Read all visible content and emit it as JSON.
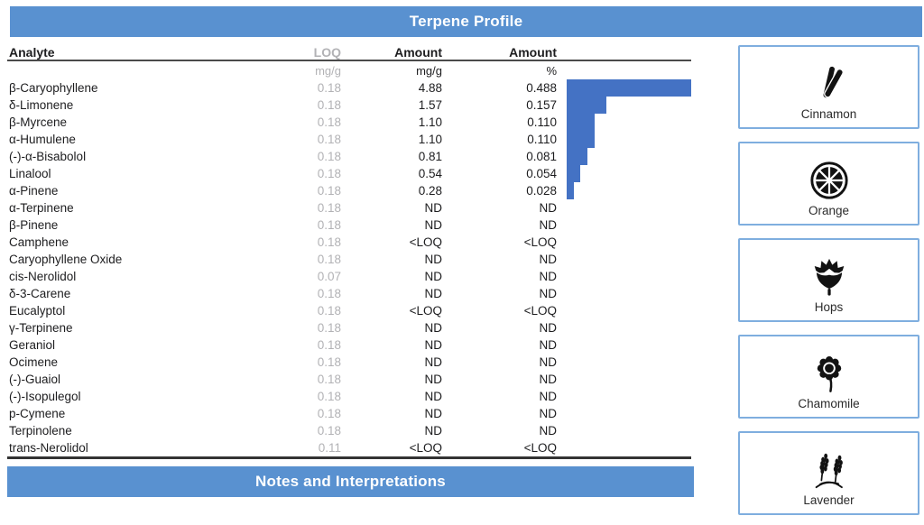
{
  "title_bar": {
    "label": "Terpene Profile"
  },
  "notes_bar": {
    "label": "Notes and Interpretations"
  },
  "colors": {
    "section_header_blue": "#5991D0",
    "bar_blue": "#4472C4",
    "loq_gray": "#B2B2B5",
    "card_border_blue": "#7FAEDF",
    "rule_dark": "#4A4A4A",
    "text": "#1D1D1F"
  },
  "table": {
    "columns": [
      {
        "label": "Analyte",
        "unit": ""
      },
      {
        "label": "LOQ",
        "unit": "mg/g"
      },
      {
        "label": "Amount",
        "unit": "mg/g"
      },
      {
        "label": "Amount",
        "unit": "%"
      }
    ],
    "rows": [
      {
        "analyte": "β-Caryophyllene",
        "loq": "0.18",
        "amount": "4.88",
        "pct": "0.488",
        "bar": 4.88
      },
      {
        "analyte": "δ-Limonene",
        "loq": "0.18",
        "amount": "1.57",
        "pct": "0.157",
        "bar": 1.57
      },
      {
        "analyte": "β-Myrcene",
        "loq": "0.18",
        "amount": "1.10",
        "pct": "0.110",
        "bar": 1.1
      },
      {
        "analyte": "α-Humulene",
        "loq": "0.18",
        "amount": "1.10",
        "pct": "0.110",
        "bar": 1.1
      },
      {
        "analyte": "(-)-α-Bisabolol",
        "loq": "0.18",
        "amount": "0.81",
        "pct": "0.081",
        "bar": 0.81
      },
      {
        "analyte": "Linalool",
        "loq": "0.18",
        "amount": "0.54",
        "pct": "0.054",
        "bar": 0.54
      },
      {
        "analyte": "α-Pinene",
        "loq": "0.18",
        "amount": "0.28",
        "pct": "0.028",
        "bar": 0.28
      },
      {
        "analyte": "α-Terpinene",
        "loq": "0.18",
        "amount": "ND",
        "pct": "ND"
      },
      {
        "analyte": "β-Pinene",
        "loq": "0.18",
        "amount": "ND",
        "pct": "ND"
      },
      {
        "analyte": "Camphene",
        "loq": "0.18",
        "amount": "<LOQ",
        "pct": "<LOQ"
      },
      {
        "analyte": "Caryophyllene Oxide",
        "loq": "0.18",
        "amount": "ND",
        "pct": "ND"
      },
      {
        "analyte": "cis-Nerolidol",
        "loq": "0.07",
        "amount": "ND",
        "pct": "ND"
      },
      {
        "analyte": "δ-3-Carene",
        "loq": "0.18",
        "amount": "ND",
        "pct": "ND"
      },
      {
        "analyte": "Eucalyptol",
        "loq": "0.18",
        "amount": "<LOQ",
        "pct": "<LOQ"
      },
      {
        "analyte": "γ-Terpinene",
        "loq": "0.18",
        "amount": "ND",
        "pct": "ND"
      },
      {
        "analyte": "Geraniol",
        "loq": "0.18",
        "amount": "ND",
        "pct": "ND"
      },
      {
        "analyte": "Ocimene",
        "loq": "0.18",
        "amount": "ND",
        "pct": "ND"
      },
      {
        "analyte": "(-)-Guaiol",
        "loq": "0.18",
        "amount": "ND",
        "pct": "ND"
      },
      {
        "analyte": "(-)-Isopulegol",
        "loq": "0.18",
        "amount": "ND",
        "pct": "ND"
      },
      {
        "analyte": "p-Cymene",
        "loq": "0.18",
        "amount": "ND",
        "pct": "ND"
      },
      {
        "analyte": "Terpinolene",
        "loq": "0.18",
        "amount": "ND",
        "pct": "ND"
      },
      {
        "analyte": "trans-Nerolidol",
        "loq": "0.11",
        "amount": "<LOQ",
        "pct": "<LOQ"
      }
    ]
  },
  "chart_data": {
    "type": "bar",
    "orientation": "horizontal",
    "categories": [
      "β-Caryophyllene",
      "δ-Limonene",
      "β-Myrcene",
      "α-Humulene",
      "(-)-α-Bisabolol",
      "Linalool",
      "α-Pinene"
    ],
    "values": [
      4.88,
      1.57,
      1.1,
      1.1,
      0.81,
      0.54,
      0.28
    ],
    "unit": "mg/g",
    "xlim": [
      0,
      4.88
    ],
    "color": "#4472C4",
    "grid": false,
    "legend": false
  },
  "flavor_cards": [
    {
      "label": "Cinnamon",
      "icon": "cinnamon-icon"
    },
    {
      "label": "Orange",
      "icon": "orange-icon"
    },
    {
      "label": "Hops",
      "icon": "hops-icon"
    },
    {
      "label": "Chamomile",
      "icon": "chamomile-icon"
    },
    {
      "label": "Lavender",
      "icon": "lavender-icon"
    }
  ]
}
